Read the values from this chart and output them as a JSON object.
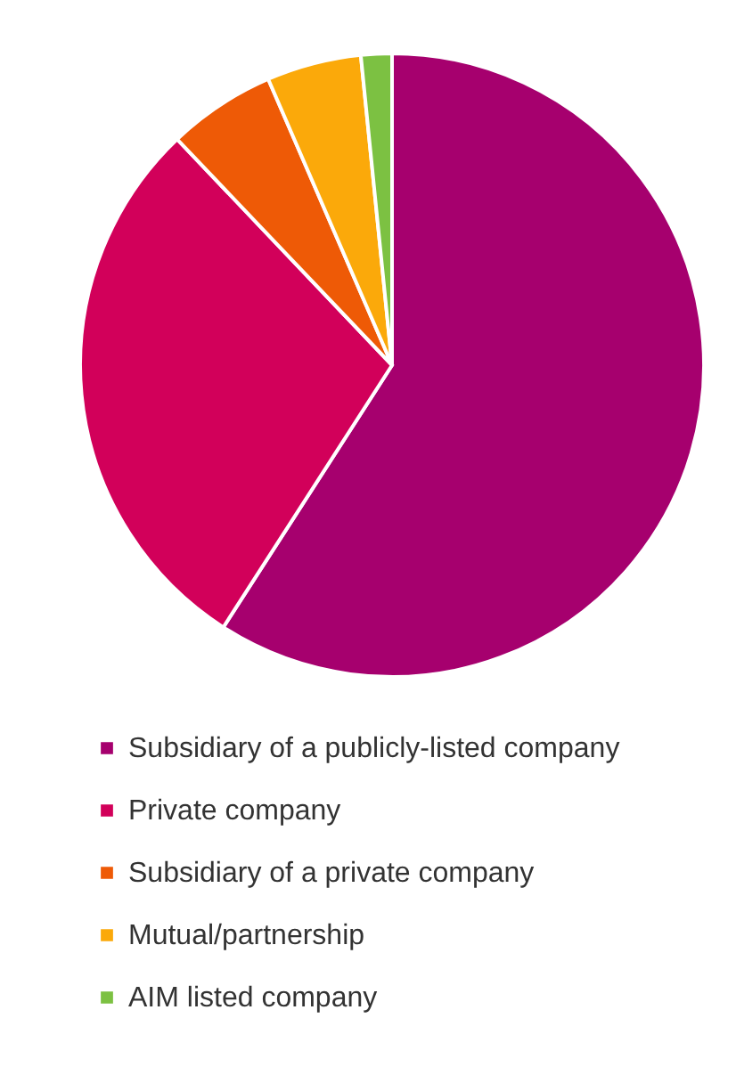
{
  "chart_data": {
    "type": "pie",
    "categories": [
      "Subsidiary of a publicly-listed company",
      "Private company",
      "Subsidiary of a private company",
      "Mutual/partnership",
      "AIM listed company"
    ],
    "values": [
      59.1,
      28.8,
      5.6,
      4.9,
      1.6
    ],
    "colors": [
      "#a6006e",
      "#d2005a",
      "#ee5a06",
      "#fba90a",
      "#7cc142"
    ],
    "legend": "bottom"
  }
}
